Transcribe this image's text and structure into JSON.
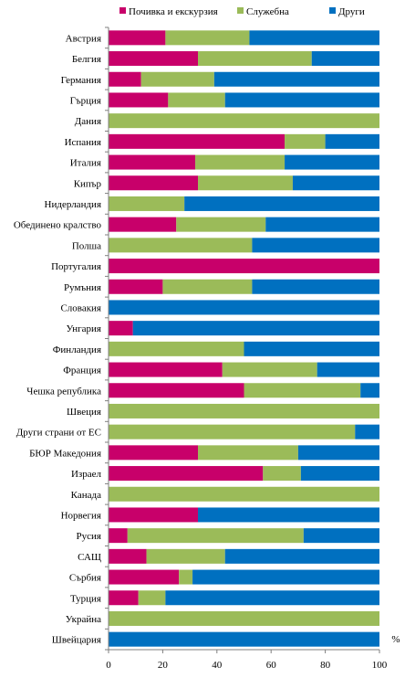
{
  "chart_data": {
    "type": "bar",
    "orientation": "horizontal",
    "stacked": true,
    "categories": [
      "Австрия",
      "Белгия",
      "Германия",
      "Гърция",
      "Дания",
      "Испания",
      "Италия",
      "Кипър",
      "Нидерландия",
      "Обединено кралство",
      "Полша",
      "Португалия",
      "Румъния",
      "Словакия",
      "Унгария",
      "Финландия",
      "Франция",
      "Чешка република",
      "Швеция",
      "Други страни от ЕС",
      "БЮР Македония",
      "Израел",
      "Канада",
      "Норвегия",
      "Русия",
      "САЩ",
      "Сърбия",
      "Турция",
      "Украйна",
      "Швейцария"
    ],
    "series": [
      {
        "name": "Почивка и екскурзия",
        "color": "#c8006a",
        "values": [
          21,
          33,
          12,
          22,
          0,
          65,
          32,
          33,
          0,
          25,
          0,
          100,
          20,
          0,
          9,
          0,
          42,
          50,
          0,
          0,
          33,
          57,
          0,
          33,
          7,
          14,
          26,
          11,
          0,
          0
        ]
      },
      {
        "name": "Служебна",
        "color": "#9bbb59",
        "values": [
          31,
          42,
          27,
          21,
          100,
          15,
          33,
          35,
          28,
          33,
          53,
          0,
          33,
          0,
          0,
          50,
          35,
          43,
          100,
          91,
          37,
          14,
          100,
          0,
          65,
          29,
          5,
          10,
          100,
          0
        ]
      },
      {
        "name": "Други",
        "color": "#0070c0",
        "values": [
          48,
          25,
          61,
          57,
          0,
          20,
          35,
          32,
          72,
          42,
          47,
          0,
          47,
          100,
          91,
          50,
          23,
          7,
          0,
          9,
          30,
          29,
          0,
          67,
          28,
          57,
          69,
          79,
          0,
          100
        ]
      }
    ],
    "x_ticks": [
      "0",
      "20",
      "40",
      "60",
      "80",
      "100"
    ],
    "xlim": [
      0,
      100
    ],
    "unit": "%",
    "legend_position": "top",
    "grid": false
  }
}
